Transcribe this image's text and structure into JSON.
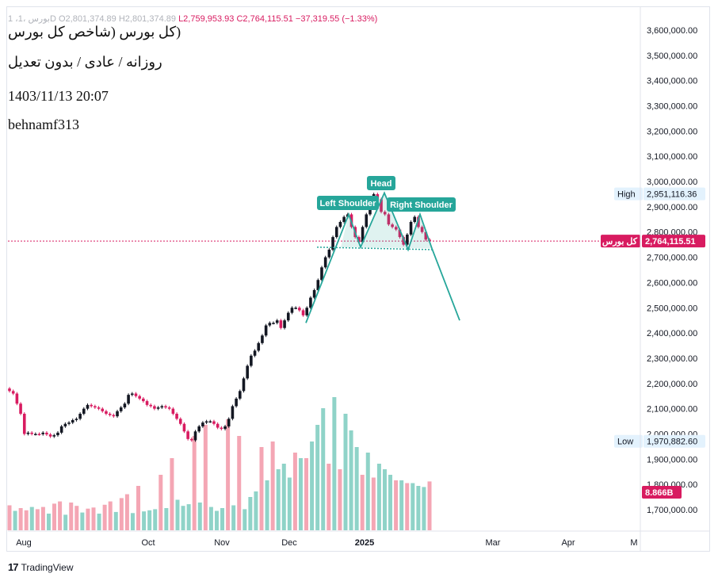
{
  "header": {
    "symbol_line": "1 ،بورس ،1D",
    "open": "O2,801,374.89",
    "high": "H2,801,374.89",
    "low": "L2,759,953.93",
    "close": "C2,764,115.51",
    "change": "−37,319.55 (−1.33%)"
  },
  "overlay_text": {
    "title": "(کل بورس (شاخص کل بورس",
    "subtitle": "روزانه / عادی / بدون تعدیل",
    "datetime": "1403/11/13 20:07",
    "author": "behnamf313"
  },
  "footer": {
    "brand": "TradingView",
    "logo_icon": "tradingview-logo-icon"
  },
  "colors": {
    "up": "#131722",
    "down": "#d81b60",
    "vol_up": "#8fd3c8",
    "vol_down": "#f4a6b4",
    "pattern": "#26a69a",
    "pattern_fill": "rgba(38,166,154,0.15)",
    "price_line": "#d81b60",
    "label_bg": "#e3f2fd"
  },
  "chart_data": {
    "type": "candlestick",
    "y_axis": {
      "ticks": [
        "3,600,000.00",
        "3,500,000.00",
        "3,400,000.00",
        "3,300,000.00",
        "3,200,000.00",
        "3,100,000.00",
        "3,000,000.00",
        "2,900,000.00",
        "2,800,000.00",
        "2,700,000.00",
        "2,600,000.00",
        "2,500,000.00",
        "2,400,000.00",
        "2,300,000.00",
        "2,200,000.00",
        "2,100,000.00",
        "2,000,000.00",
        "1,900,000.00",
        "1,800,000.00",
        "1,700,000.00"
      ],
      "range": [
        1650000,
        3630000
      ]
    },
    "x_axis": {
      "ticks": [
        "Aug",
        "Oct",
        "Nov",
        "Dec",
        "2025",
        "Mar",
        "Apr",
        "M"
      ]
    },
    "labels": {
      "high": {
        "text": "High",
        "value": "2,951,116.36"
      },
      "low": {
        "text": "Low",
        "value": "1,970,882.60"
      },
      "last": {
        "text": "کل بورس",
        "value": "2,764,115.51"
      },
      "volume": "8.866B"
    },
    "pattern": {
      "left_shoulder": "Left Shoulder",
      "head": "Head",
      "right_shoulder": "Right Shoulder",
      "neckline_start": 2740000,
      "neckline_end": 2730000,
      "target": 2450000
    },
    "closes": [
      2170000,
      2160000,
      2120000,
      2080000,
      2000000,
      2005000,
      2000000,
      2000000,
      1999000,
      2005000,
      1998000,
      1990000,
      1995000,
      2005000,
      2030000,
      2040000,
      2045000,
      2055000,
      2060000,
      2080000,
      2100000,
      2115000,
      2110000,
      2105000,
      2100000,
      2090000,
      2080000,
      2075000,
      2070000,
      2090000,
      2105000,
      2120000,
      2155000,
      2160000,
      2150000,
      2140000,
      2130000,
      2115000,
      2110000,
      2100000,
      2105000,
      2110000,
      2105000,
      2100000,
      2080000,
      2060000,
      2040000,
      2010000,
      1980000,
      1975000,
      2010000,
      2030000,
      2045000,
      2050000,
      2050000,
      2040000,
      2025000,
      2020000,
      2030000,
      2060000,
      2110000,
      2140000,
      2170000,
      2220000,
      2270000,
      2310000,
      2330000,
      2360000,
      2390000,
      2430000,
      2440000,
      2440000,
      2450000,
      2420000,
      2450000,
      2480000,
      2500000,
      2500000,
      2490000,
      2470000,
      2500000,
      2540000,
      2570000,
      2610000,
      2660000,
      2700000,
      2730000,
      2780000,
      2820000,
      2840000,
      2860000,
      2870000,
      2820000,
      2780000,
      2760000,
      2820000,
      2870000,
      2930000,
      2950000,
      2930000,
      2880000,
      2870000,
      2830000,
      2820000,
      2810000,
      2780000,
      2750000,
      2790000,
      2840000,
      2860000,
      2820000,
      2800000,
      2770000,
      2764115
    ],
    "volumes_up": [
      0.35,
      0.42,
      0.3,
      0.28,
      0.32,
      0.3,
      0.33,
      0.31,
      0.34,
      0.36,
      0.38,
      0.4,
      0.55,
      0.44,
      0.47,
      0.5,
      0.42,
      0.35,
      0.4,
      0.45,
      0.38,
      0.6,
      0.7,
      0.9,
      1.1,
      1.2,
      0.95,
      1.3,
      1.6,
      1.9,
      2.2,
      2.4,
      2.1,
      1.8,
      1.5,
      1.4,
      1.2,
      1.1,
      1.0,
      0.9,
      0.85,
      0.8,
      0.78
    ],
    "volumes_down": [
      0.45,
      0.4,
      0.36,
      0.38,
      0.42,
      0.48,
      0.52,
      0.5,
      0.44,
      0.39,
      0.41,
      0.46,
      0.52,
      0.58,
      0.65,
      0.8,
      1.0,
      1.3,
      1.7,
      1.9,
      2.0,
      1.7,
      1.5,
      1.6,
      1.4,
      1.3,
      1.2,
      1.1,
      1.0,
      0.95,
      0.9,
      0.85,
      0.88
    ]
  }
}
